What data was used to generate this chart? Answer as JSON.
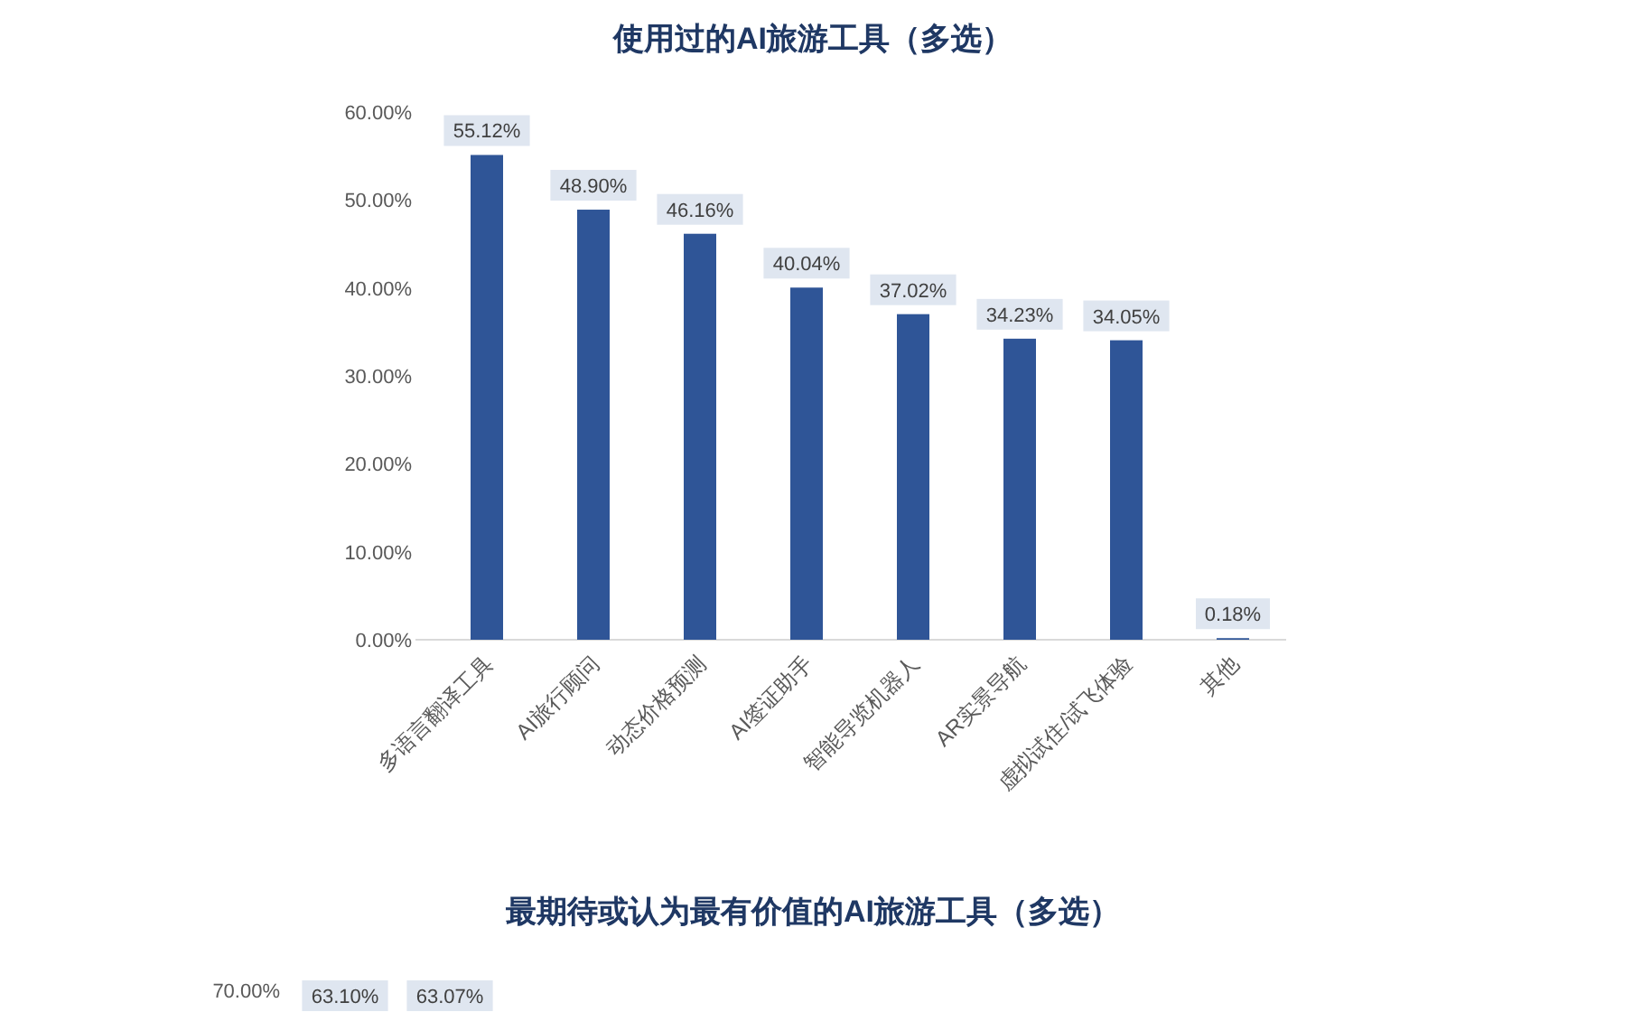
{
  "chart_data": [
    {
      "type": "bar",
      "title": "使用过的AI旅游工具（多选）",
      "categories": [
        "多语言翻译工具",
        "AI旅行顾问",
        "动态价格预测",
        "AI签证助手",
        "智能导览机器人",
        "AR实景导航",
        "虚拟试住/试飞体验",
        "其他"
      ],
      "values": [
        55.12,
        48.9,
        46.16,
        40.04,
        37.02,
        34.23,
        34.05,
        0.18
      ],
      "value_labels": [
        "55.12%",
        "48.90%",
        "46.16%",
        "40.04%",
        "37.02%",
        "34.23%",
        "34.05%",
        "0.18%"
      ],
      "color": "#2f5597",
      "ylim": [
        0,
        60
      ],
      "yticks": [
        {
          "value": 0,
          "label": "0.00%"
        },
        {
          "value": 10,
          "label": "10.00%"
        },
        {
          "value": 20,
          "label": "20.00%"
        },
        {
          "value": 30,
          "label": "30.00%"
        },
        {
          "value": 40,
          "label": "40.00%"
        },
        {
          "value": 50,
          "label": "50.00%"
        },
        {
          "value": 60,
          "label": "60.00%"
        }
      ],
      "grid": false
    },
    {
      "type": "other",
      "title": "最期待或认为最有价值的AI旅游工具（多选）",
      "annotations": [
        "70.00%",
        "63.10%",
        "63.07%"
      ]
    }
  ]
}
